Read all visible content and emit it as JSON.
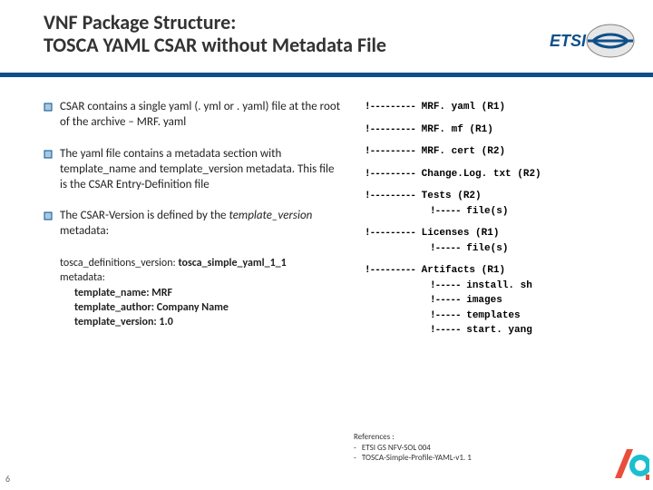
{
  "title": {
    "line1": "VNF Package Structure:",
    "line2": "TOSCA YAML CSAR without Metadata File"
  },
  "bullets": [
    "CSAR contains a single yaml (. yml or . yaml) file at the root of the archive – MRF. yaml",
    "The yaml file contains a metadata section with template_name and template_version metadata. This file is the CSAR Entry-Definition file",
    "The CSAR-Version is defined by the"
  ],
  "bullet3_em": "template_version",
  "bullet3_tail": "metadata:",
  "yaml": {
    "defs_key": "tosca_definitions_version:",
    "defs_val": "tosca_simple_yaml_1_1",
    "meta": "metadata:",
    "tname": "template_name: MRF",
    "tauthor": "template_author: Company Name",
    "tver": "template_version: 1.0"
  },
  "tree": {
    "dash_long": "!---------",
    "dash_short": "!-----",
    "items": [
      {
        "path": "MRF. yaml (R1)"
      },
      {
        "path": "MRF. mf (R1)"
      },
      {
        "path": "MRF. cert (R2)"
      },
      {
        "path": "Change.Log. txt (R2)"
      },
      {
        "path": "Tests (R2)",
        "children": [
          "file(s)"
        ]
      },
      {
        "path": "Licenses (R1)",
        "children": [
          "file(s)"
        ]
      },
      {
        "path": "Artifacts (R1)",
        "children": [
          "install. sh",
          "images",
          "templates",
          "start. yang"
        ]
      }
    ]
  },
  "refs": {
    "hd": "References :",
    "r1": "ETSI GS NFV-SOL 004",
    "r2": "TOSCA-Simple-Profile-YAML-v1. 1"
  },
  "pagenum": "6",
  "colors": {
    "rule": "#0d4f8b",
    "bullet_box_stroke": "#0d4f8b",
    "bullet_box_fill": "#a8c8e0",
    "etsi_oval": "#e6e6e6",
    "etsi_border": "#808080",
    "etsi_text": "#0d4f8b",
    "a_red": "#e94e3c",
    "a_teal": "#1bbfcf"
  }
}
